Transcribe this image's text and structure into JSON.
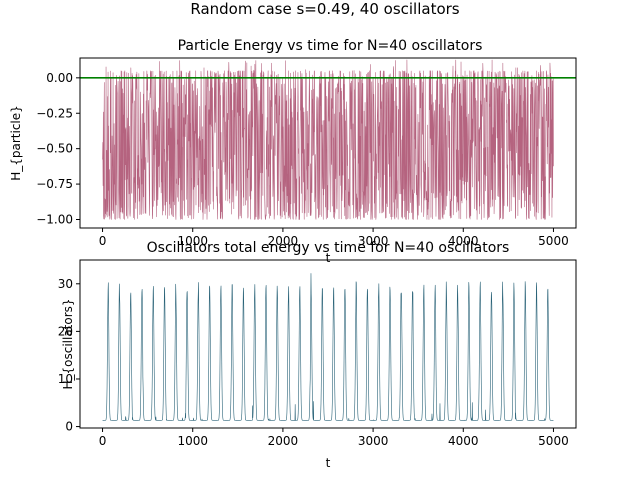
{
  "suptitle": "Random case s=0.49, 40 oscillators",
  "chart_data": [
    {
      "type": "line",
      "title": "Particle Energy vs time for N=40 oscillators",
      "xlabel": "t",
      "ylabel": "H_{particle}",
      "xlim": [
        -250,
        5250
      ],
      "ylim": [
        -1.06,
        0.14
      ],
      "xticks": [
        0,
        1000,
        2000,
        3000,
        4000,
        5000
      ],
      "xtick_labels": [
        "0",
        "1000",
        "2000",
        "3000",
        "4000",
        "5000"
      ],
      "yticks": [
        0.0,
        -0.25,
        -0.5,
        -0.75,
        -1.0
      ],
      "ytick_labels": [
        "0.00",
        "−0.25",
        "−0.50",
        "−0.75",
        "−1.00"
      ],
      "grid": false,
      "series": [
        {
          "color": "#b5637f",
          "cycles": 40,
          "x_range": [
            0,
            5000
          ],
          "y_min": -1.0,
          "y_max": 0.13,
          "description": "rapid oscillation between about -1.00 and 0.05 over t=0..5000, about 40 bursts"
        }
      ],
      "hlines": [
        {
          "y": 0.0,
          "color": "#008000"
        }
      ]
    },
    {
      "type": "line",
      "title": "Oscillators total energy vs time for N=40 oscillators",
      "xlabel": "t",
      "ylabel": "H_{oscillators}",
      "xlim": [
        -250,
        5250
      ],
      "ylim": [
        -0.3,
        35.0
      ],
      "xticks": [
        0,
        1000,
        2000,
        3000,
        4000,
        5000
      ],
      "xtick_labels": [
        "0",
        "1000",
        "2000",
        "3000",
        "4000",
        "5000"
      ],
      "yticks": [
        0,
        10,
        20,
        30
      ],
      "ytick_labels": [
        "0",
        "10",
        "20",
        "30"
      ],
      "grid": false,
      "series": [
        {
          "color": "#2a6378",
          "cycles": 40,
          "x_range": [
            0,
            5000
          ],
          "y_min": 1.3,
          "y_max": 33.0,
          "description": "periodic spikes from about 1.5 up to about 30 over t=0..5000, about 40 spikes"
        }
      ]
    }
  ]
}
